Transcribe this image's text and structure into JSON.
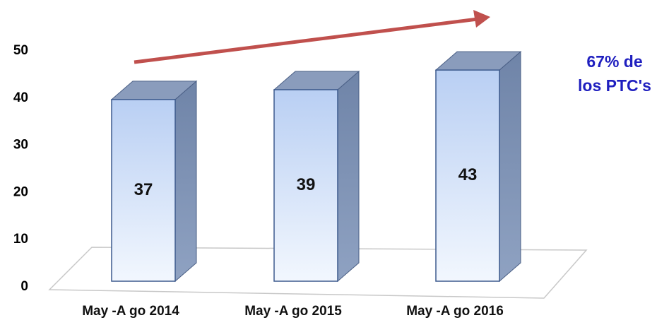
{
  "chart_data": {
    "type": "bar3d",
    "categories": [
      "May -A go 2014",
      "May -A go 2015",
      "May -A go 2016"
    ],
    "values": [
      37,
      39,
      43
    ],
    "color": "#c9dcf7",
    "ylim": [
      0,
      50
    ],
    "yticks": [
      0,
      10,
      20,
      30,
      40,
      50
    ],
    "annotation": [
      "67% de",
      "los PTC's"
    ],
    "annotation_color": "#1f1fbf",
    "arrow_color": "#c0504d"
  }
}
